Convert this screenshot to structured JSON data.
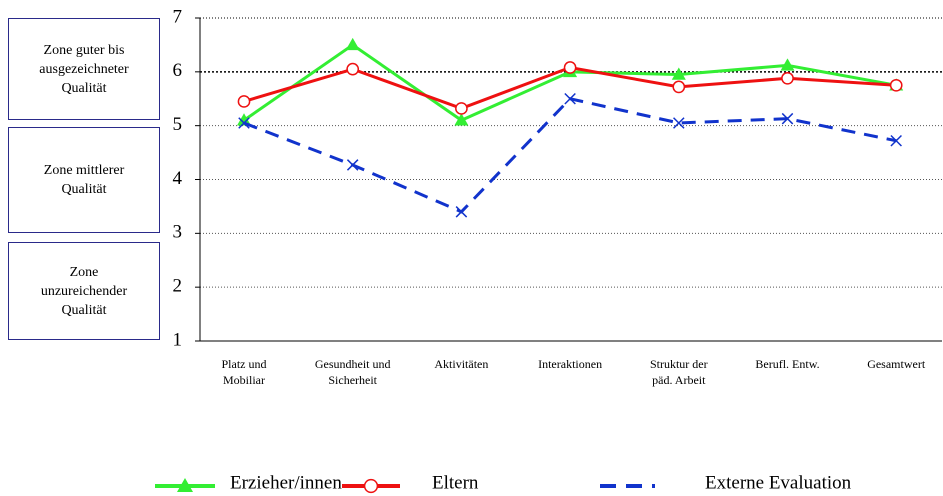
{
  "chart_data": {
    "type": "line",
    "categories": [
      "Platz und\nMobiliar",
      "Gesundheit und\nSicherheit",
      "Aktivitäten",
      "Interaktionen",
      "Struktur der\npäd. Arbeit",
      "Berufl. Entw.",
      "Gesamtwert"
    ],
    "series": [
      {
        "name": "Erzieher/innen",
        "color": "#33ee33",
        "marker": "triangle",
        "values": [
          5.1,
          6.5,
          5.1,
          6.0,
          5.95,
          6.12,
          5.75
        ]
      },
      {
        "name": "Eltern",
        "color": "#ee1111",
        "marker": "circle",
        "values": [
          5.45,
          6.05,
          5.32,
          6.08,
          5.72,
          5.88,
          5.75
        ]
      },
      {
        "name": "Externe Evaluation",
        "color": "#1133cc",
        "marker": "x",
        "dashed": true,
        "values": [
          5.05,
          4.27,
          3.4,
          5.5,
          5.05,
          5.13,
          4.72
        ]
      }
    ],
    "ylim": [
      1,
      7
    ],
    "yticks": [
      1,
      2,
      3,
      4,
      5,
      6,
      7
    ],
    "grid": true,
    "zones": [
      "Zone guter bis\nausgezeichneter\nQualität",
      "Zone mittlerer\nQualität",
      "Zone\nunzureichender\nQualität"
    ]
  }
}
